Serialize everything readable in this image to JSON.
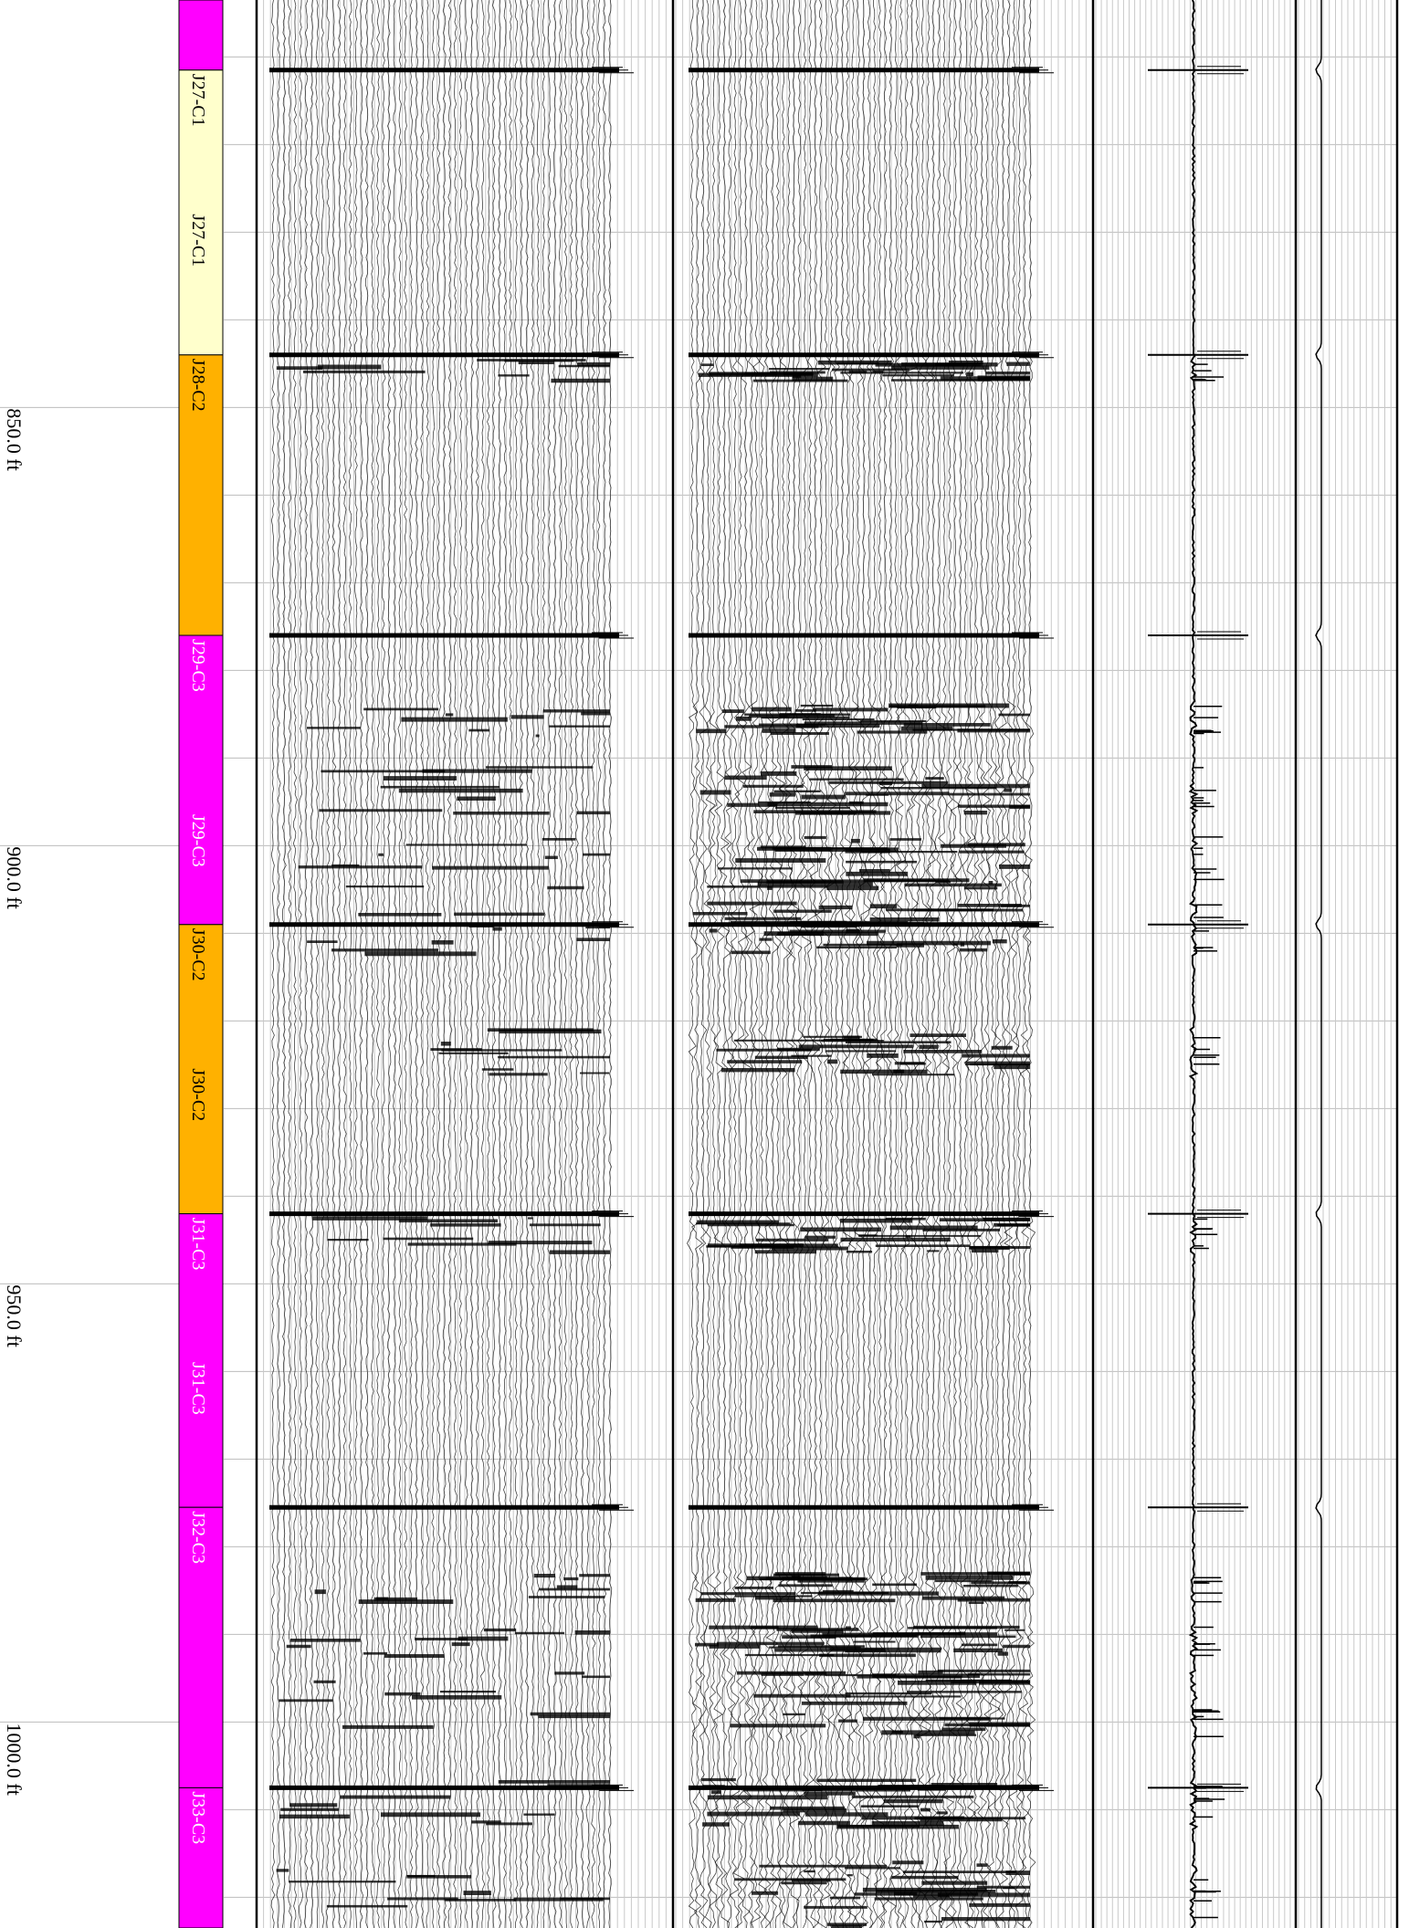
{
  "chart_data": {
    "type": "well-log",
    "title": "",
    "depth_unit": "ft",
    "depth_range": [
      803.5,
      1023.5
    ],
    "depth_labels": [
      {
        "depth": 850,
        "text": "850.0 ft"
      },
      {
        "depth": 900,
        "text": "900.0 ft"
      },
      {
        "depth": 950,
        "text": "950.0 ft"
      },
      {
        "depth": 1000,
        "text": "1000.0 ft"
      }
    ],
    "zones": [
      {
        "top": 803.5,
        "base": 811.5,
        "label": "",
        "color": "#ff00ff",
        "text_color": "#ffffff",
        "label_depths": []
      },
      {
        "top": 811.5,
        "base": 844.0,
        "label": "J27-C1",
        "color": "#ffffcc",
        "text_color": "#000000",
        "label_depths": [
          811.5,
          827.5
        ]
      },
      {
        "top": 844.0,
        "base": 876.0,
        "label": "J28-C2",
        "color": "#ffb100",
        "text_color": "#000000",
        "label_depths": [
          844.0
        ]
      },
      {
        "top": 876.0,
        "base": 909.0,
        "label": "J29-C3",
        "color": "#ff00ff",
        "text_color": "#ffffff",
        "label_depths": [
          876.0,
          896.0
        ]
      },
      {
        "top": 909.0,
        "base": 942.0,
        "label": "J30-C2",
        "color": "#ffb100",
        "text_color": "#000000",
        "label_depths": [
          909.0,
          925.0
        ]
      },
      {
        "top": 942.0,
        "base": 975.5,
        "label": "J31-C3",
        "color": "#ff00ff",
        "text_color": "#ffffff",
        "label_depths": [
          942.0,
          958.5
        ]
      },
      {
        "top": 975.5,
        "base": 1007.5,
        "label": "J32-C3",
        "color": "#ff00ff",
        "text_color": "#ffffff",
        "label_depths": [
          975.5
        ]
      },
      {
        "top": 1007.5,
        "base": 1023.5,
        "label": "J33-C3",
        "color": "#ff00ff",
        "text_color": "#ffffff",
        "label_depths": [
          1007.5
        ]
      }
    ],
    "event_depths": [
      811.5,
      844.0,
      876.0,
      909.0,
      942.0,
      975.5,
      1007.5
    ],
    "dense_intervals": [
      {
        "top": 844.5,
        "base": 847.0
      },
      {
        "top": 884.0,
        "base": 887.5
      },
      {
        "top": 891.0,
        "base": 896.5
      },
      {
        "top": 899.0,
        "base": 905.0
      },
      {
        "top": 906.5,
        "base": 912.5
      },
      {
        "top": 921.0,
        "base": 926.5
      },
      {
        "top": 942.5,
        "base": 946.5
      },
      {
        "top": 983.0,
        "base": 986.5
      },
      {
        "top": 989.0,
        "base": 992.5
      },
      {
        "top": 994.0,
        "base": 1002.0
      },
      {
        "top": 1006.5,
        "base": 1012.0
      },
      {
        "top": 1016.0,
        "base": 1023.5
      }
    ],
    "grid": true,
    "tracks": [
      {
        "name": "",
        "kind": "variable-density-waveform"
      },
      {
        "name": "",
        "kind": "variable-density-waveform"
      },
      {
        "name": "",
        "kind": "curve"
      },
      {
        "name": "",
        "kind": "curve"
      }
    ]
  }
}
